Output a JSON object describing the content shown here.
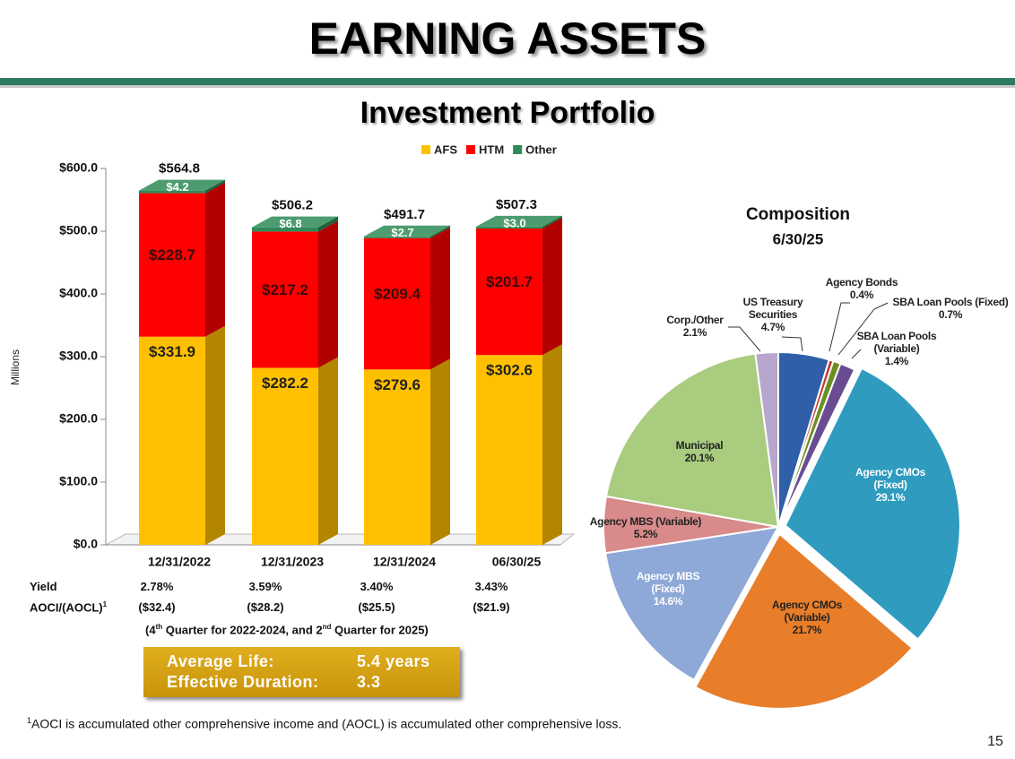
{
  "slide": {
    "title": "EARNING ASSETS",
    "subtitle": "Investment Portfolio",
    "metrics_table": {
      "rows": [
        {
          "label": "Yield",
          "cells": [
            "2.78%",
            "3.59%",
            "3.40%",
            "3.43%"
          ]
        },
        {
          "label": "AOCI/(AOCL)",
          "footnote_marker": "1",
          "cells": [
            "($32.4)",
            "($28.2)",
            "($25.5)",
            "($21.9)"
          ]
        }
      ],
      "note_parts": [
        "(4",
        "th",
        " Quarter for 2022-2024, and 2",
        "nd",
        " Quarter for 2025)"
      ]
    },
    "summary_box": {
      "rows": [
        {
          "label": "Average Life:",
          "value": "5.4 years"
        },
        {
          "label": "Effective Duration:",
          "value": "3.3"
        }
      ]
    },
    "footnote": {
      "marker": "1",
      "text": "AOCI is accumulated other comprehensive income and (AOCL) is accumulated other comprehensive loss."
    },
    "page_number": "15"
  },
  "chart_data": [
    {
      "type": "bar",
      "stacked": true,
      "y_label": "Millions",
      "legend": "top",
      "categories": [
        "12/31/2022",
        "12/31/2023",
        "12/31/2024",
        "06/30/25"
      ],
      "series": [
        {
          "name": "AFS",
          "color": "#FFC000",
          "values": [
            331.9,
            282.2,
            279.6,
            302.6
          ],
          "value_labels": [
            "$331.9",
            "$282.2",
            "$279.6",
            "$302.6"
          ]
        },
        {
          "name": "HTM",
          "color": "#FF0000",
          "values": [
            228.7,
            217.2,
            209.4,
            201.7
          ],
          "value_labels": [
            "$228.7",
            "$217.2",
            "$209.4",
            "$201.7"
          ]
        },
        {
          "name": "Other",
          "color": "#2E8B57",
          "values": [
            4.2,
            6.8,
            2.7,
            3.0
          ],
          "value_labels": [
            "$4.2",
            "$6.8",
            "$2.7",
            "$3.0"
          ]
        }
      ],
      "totals": {
        "values": [
          564.8,
          506.2,
          491.7,
          507.3
        ],
        "value_labels": [
          "$564.8",
          "$506.2",
          "$491.7",
          "$507.3"
        ]
      },
      "ylim": [
        0,
        600
      ],
      "yticks": [
        {
          "value": 0,
          "label": "$0.0"
        },
        {
          "value": 100,
          "label": "$100.0"
        },
        {
          "value": 200,
          "label": "$200.0"
        },
        {
          "value": 300,
          "label": "$300.0"
        },
        {
          "value": 400,
          "label": "$400.0"
        },
        {
          "value": 500,
          "label": "$500.0"
        },
        {
          "value": 600,
          "label": "$600.0"
        }
      ]
    },
    {
      "type": "pie",
      "title": "Composition",
      "subtitle": "6/30/25",
      "categories": [
        "US Treasury Securities",
        "Agency Bonds",
        "SBA Loan Pools (Fixed)",
        "SBA Loan Pools (Variable)",
        "Agency CMOs (Fixed)",
        "Agency CMOs (Variable)",
        "Agency MBS (Fixed)",
        "Agency MBS (Variable)",
        "Municipal",
        "Corp./Other"
      ],
      "values": [
        4.7,
        0.4,
        0.7,
        1.4,
        29.1,
        21.7,
        14.6,
        5.2,
        20.1,
        2.1
      ],
      "value_labels": [
        "4.7%",
        "0.4%",
        "0.7%",
        "1.4%",
        "29.1%",
        "21.7%",
        "14.6%",
        "5.2%",
        "20.1%",
        "2.1%"
      ],
      "colors": [
        "#2E5FA8",
        "#C0392B",
        "#6B8E23",
        "#6A4C93",
        "#2E9BBF",
        "#E87D2A",
        "#8EA8D8",
        "#D98A8A",
        "#A9CC7F",
        "#B8A6CC"
      ]
    }
  ]
}
